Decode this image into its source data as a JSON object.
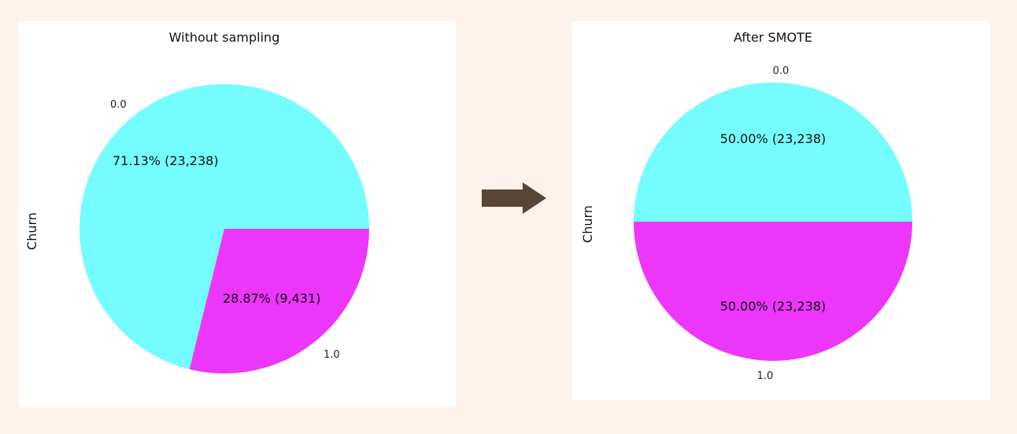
{
  "arrow_color": "#5a4534",
  "chart_data": [
    {
      "type": "pie",
      "title": "Without sampling",
      "ylabel": "Churn",
      "categories": [
        "0.0",
        "1.0"
      ],
      "values": [
        23238,
        9431
      ],
      "labels": [
        "71.13%  (23,238)",
        "28.87%  (9,431)"
      ],
      "colors": [
        "#74fcff",
        "#ec36fb"
      ]
    },
    {
      "type": "pie",
      "title": "After SMOTE",
      "ylabel": "Churn",
      "categories": [
        "0.0",
        "1.0"
      ],
      "values": [
        23238,
        23238
      ],
      "labels": [
        "50.00%  (23,238)",
        "50.00%  (23,238)"
      ],
      "colors": [
        "#74fcff",
        "#ec36fb"
      ]
    }
  ]
}
